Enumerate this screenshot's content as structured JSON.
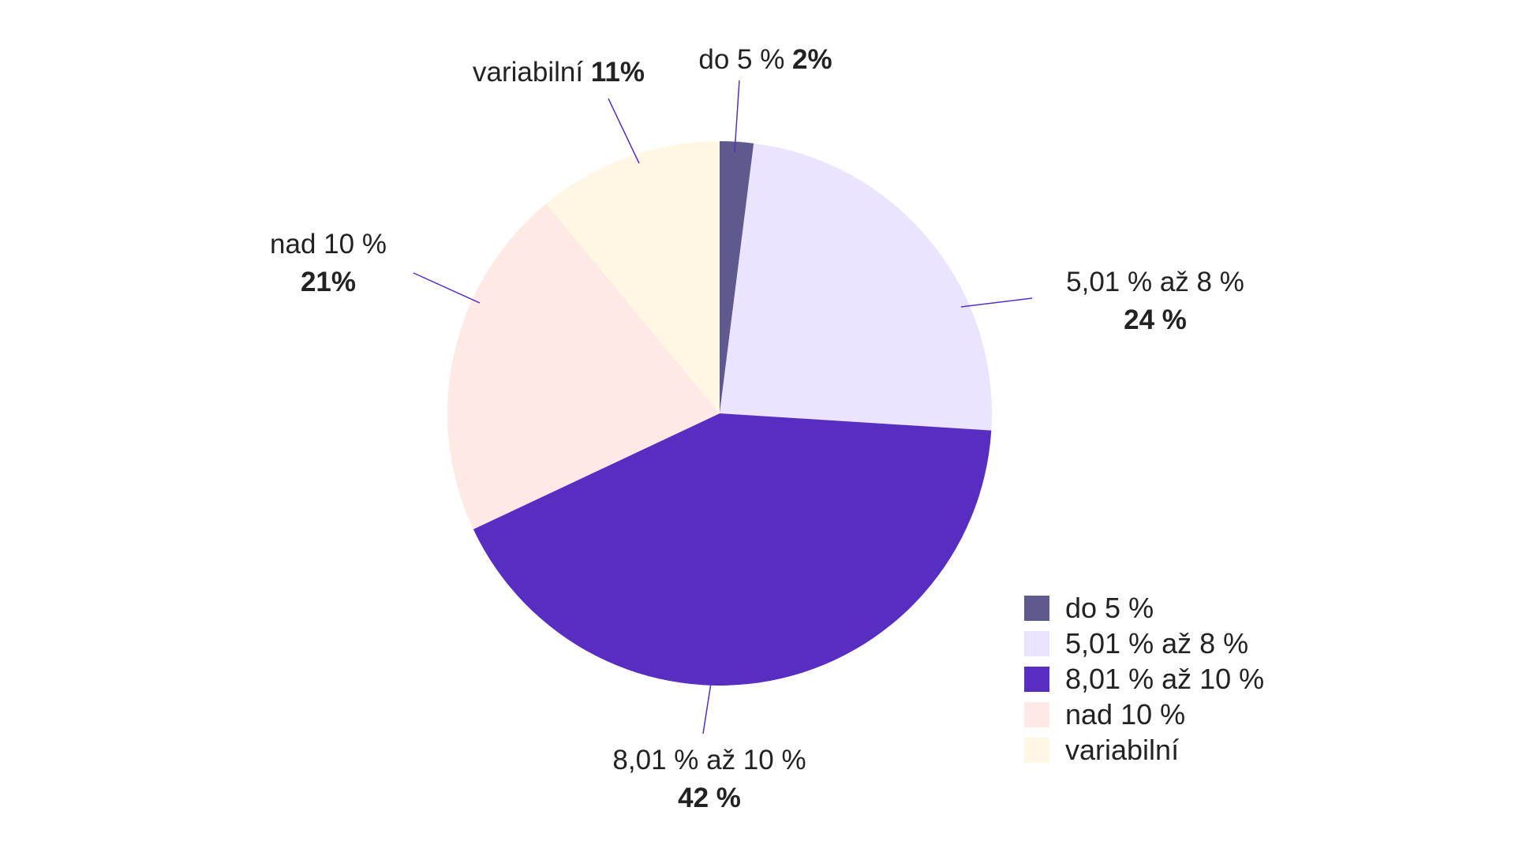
{
  "chart_data": {
    "type": "pie",
    "title": "",
    "start_angle_deg": 0,
    "direction": "clockwise",
    "slices": [
      {
        "category": "do 5 %",
        "value": 2,
        "label_name": "do 5 %",
        "label_value": "2%",
        "color": "#5e5a8e"
      },
      {
        "category": "5,01 % až 8 %",
        "value": 24,
        "label_name": "5,01 % až 8 %",
        "label_value": "24 %",
        "color": "#ebe3ff"
      },
      {
        "category": "8,01 % až 10 %",
        "value": 42,
        "label_name": "8,01 % až 10 %",
        "label_value": "42 %",
        "color": "#572dc2"
      },
      {
        "category": "nad 10 %",
        "value": 21,
        "label_name": "nad 10 %",
        "label_value": "21%",
        "color": "#ffe9e4"
      },
      {
        "category": "variabilní",
        "value": 11,
        "label_name": "variabilní",
        "label_value": "11%",
        "color": "#fff6e3"
      }
    ],
    "leader_line_color": "#572dc2",
    "legend": {
      "placement": "bottom-right",
      "items": [
        "do 5 %",
        "5,01 % až 8 %",
        "8,01 % až 10 %",
        "nad 10 %",
        "variabilní"
      ]
    }
  }
}
